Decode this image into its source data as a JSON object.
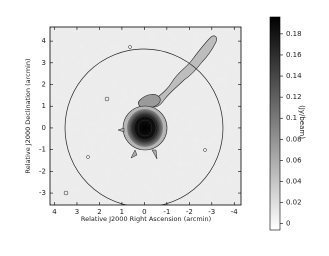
{
  "chart_data": {
    "type": "image",
    "x_label": "Relative J2000 Right Ascension (arcmin)",
    "y_label": "Relative J2000 Declination (arcmin)",
    "xlim": [
      4.2,
      -4.3
    ],
    "xticks": [
      4,
      3,
      2,
      1,
      0,
      -1,
      -2,
      -3,
      -4
    ],
    "ylim": [
      -3.55,
      4.65
    ],
    "yticks": [
      -3,
      -2,
      -1,
      0,
      1,
      2,
      3,
      4
    ],
    "colorbar": {
      "label": "(Jy/beam)",
      "lim": [
        -0.006,
        0.196
      ],
      "ticks": [
        0,
        0.02,
        0.04,
        0.06,
        0.08,
        0.1,
        0.12,
        0.14,
        0.16,
        0.18
      ],
      "colors": [
        "#ffffff",
        "#000000"
      ]
    }
  }
}
